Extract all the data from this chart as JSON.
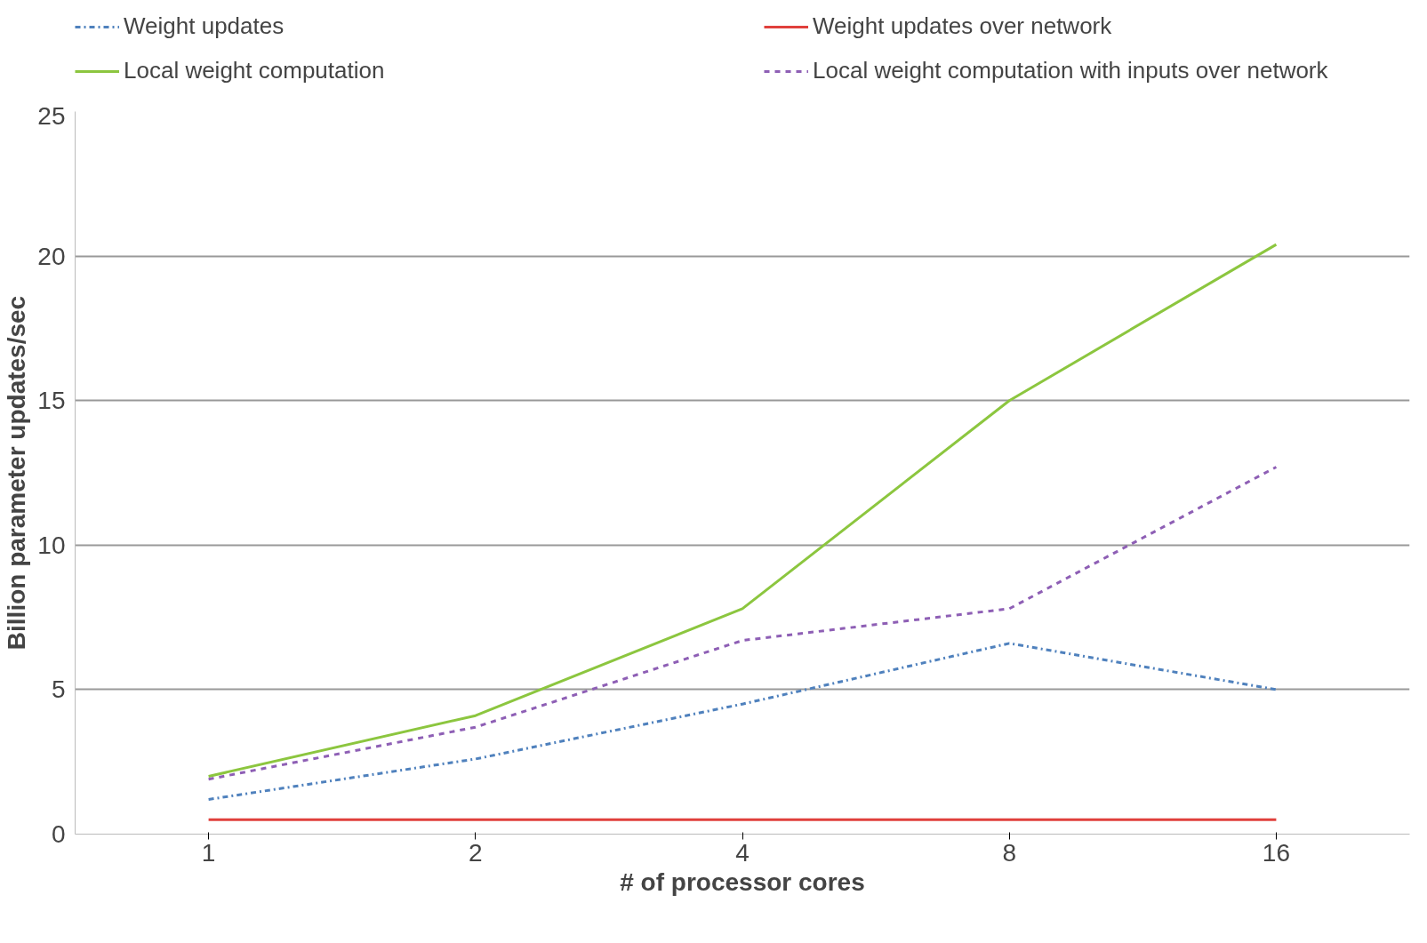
{
  "chart_data": {
    "type": "line",
    "xlabel": "# of processor cores",
    "ylabel": "Billion parameter updates/sec",
    "categories": [
      "1",
      "2",
      "4",
      "8",
      "16"
    ],
    "series": [
      {
        "name": "Weight updates",
        "color": "#4f81bd",
        "line_style": "dashdot",
        "values": [
          1.2,
          2.6,
          4.5,
          6.6,
          5.0
        ]
      },
      {
        "name": "Weight updates over network",
        "color": "#e0403c",
        "line_style": "solid",
        "values": [
          0.5,
          0.5,
          0.5,
          0.5,
          0.5
        ]
      },
      {
        "name": "Local weight computation",
        "color": "#8cc63f",
        "line_style": "solid",
        "values": [
          2.0,
          4.1,
          7.8,
          15.0,
          20.4
        ]
      },
      {
        "name": "Local weight computation with inputs over network",
        "color": "#8e5fb5",
        "line_style": "dashed",
        "values": [
          1.9,
          3.7,
          6.7,
          7.8,
          12.7
        ]
      }
    ],
    "ylim": [
      0,
      25
    ],
    "yticks": [
      0,
      5,
      10,
      15,
      20,
      25
    ],
    "grid": "y",
    "legend": "top",
    "marker": "none"
  }
}
